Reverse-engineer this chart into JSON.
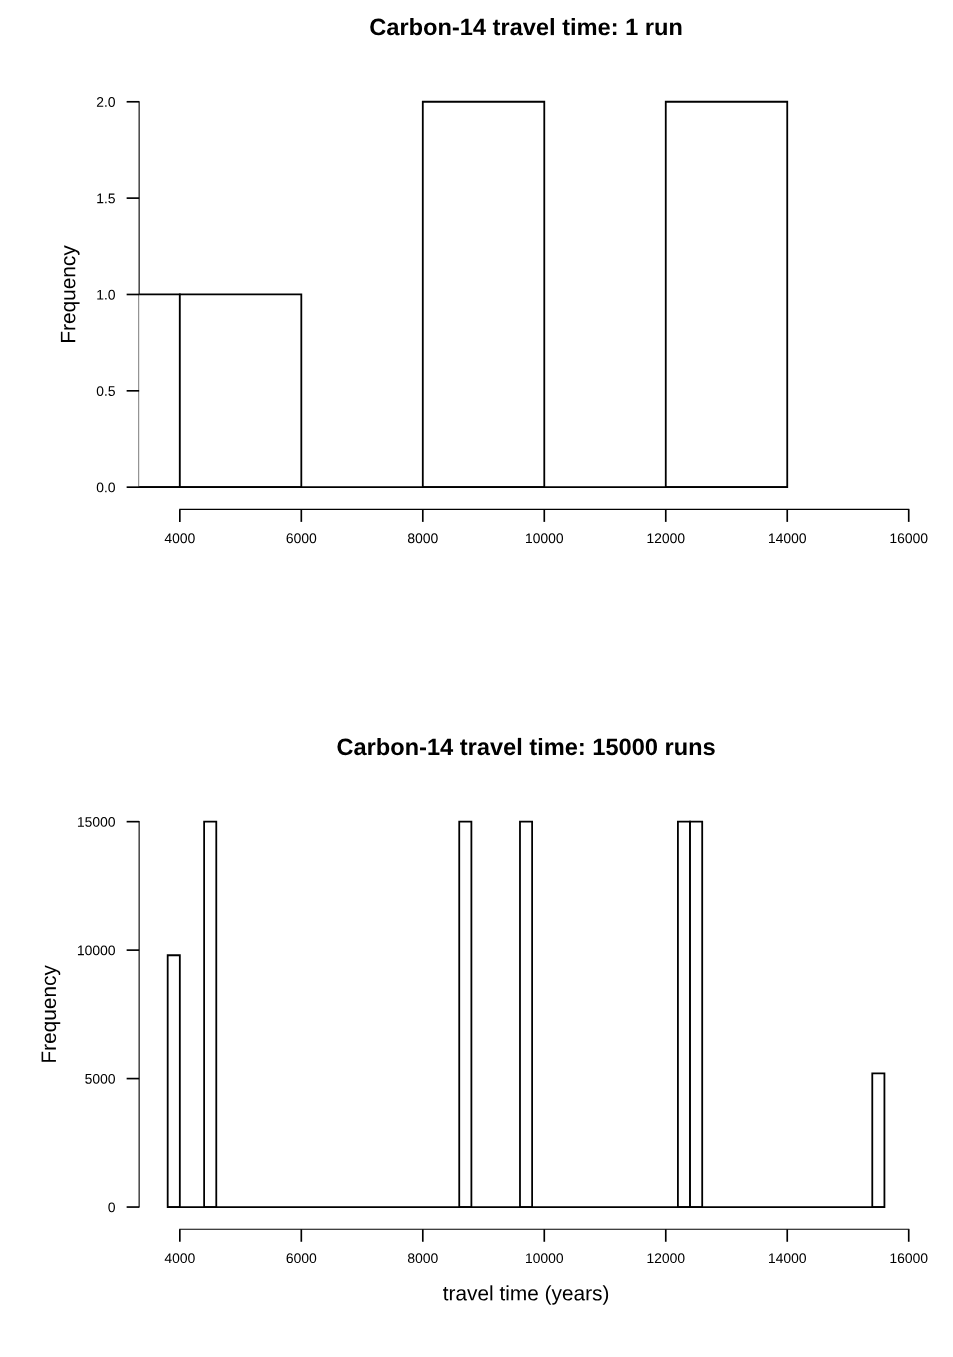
{
  "chart_data": [
    {
      "type": "histogram",
      "title": "Carbon-14 travel time: 1 run",
      "ylabel": "Frequency",
      "bins": [
        2000,
        4000,
        6000,
        8000,
        10000,
        12000,
        14000
      ],
      "values": [
        1,
        1,
        0,
        2,
        0,
        2
      ],
      "color": "#ffffff",
      "xlim": [
        3330,
        16070
      ],
      "xticks": [
        4000,
        6000,
        8000,
        10000,
        12000,
        14000,
        16000
      ],
      "ylim": [
        0,
        2
      ],
      "yticks": [
        {
          "value": 0,
          "label": "0.0"
        },
        {
          "value": 0.5,
          "label": "0.5"
        },
        {
          "value": 1,
          "label": "1.0"
        },
        {
          "value": 1.5,
          "label": "1.5"
        },
        {
          "value": 2,
          "label": "2.0"
        }
      ],
      "grid": false,
      "legend": false
    },
    {
      "type": "histogram",
      "title": "Carbon-14 travel time: 15000 runs",
      "xlabel": "travel time (years)",
      "ylabel": "Frequency",
      "bins": [
        3800,
        4000,
        4200,
        4400,
        4600,
        4800,
        5000,
        5200,
        5400,
        5600,
        5800,
        6000,
        6200,
        6400,
        6600,
        6800,
        7000,
        7200,
        7400,
        7600,
        7800,
        8000,
        8200,
        8400,
        8600,
        8800,
        9000,
        9200,
        9400,
        9600,
        9800,
        10000,
        10200,
        10400,
        10600,
        10800,
        11000,
        11200,
        11400,
        11600,
        11800,
        12000,
        12200,
        12400,
        12600,
        12800,
        13000,
        13200,
        13400,
        13600,
        13800,
        14000,
        14200,
        14400,
        14600,
        14800,
        15000,
        15200,
        15400,
        15600
      ],
      "values": [
        9800,
        0,
        0,
        15000,
        0,
        0,
        0,
        0,
        0,
        0,
        0,
        0,
        0,
        0,
        0,
        0,
        0,
        0,
        0,
        0,
        0,
        0,
        0,
        0,
        15000,
        0,
        0,
        0,
        0,
        15000,
        0,
        0,
        0,
        0,
        0,
        0,
        0,
        0,
        0,
        0,
        0,
        0,
        15000,
        15000,
        0,
        0,
        0,
        0,
        0,
        0,
        0,
        0,
        0,
        0,
        0,
        0,
        0,
        0,
        5200
      ],
      "color": "#ffffff",
      "xlim": [
        3330,
        16070
      ],
      "xticks": [
        4000,
        6000,
        8000,
        10000,
        12000,
        14000,
        16000
      ],
      "ylim": [
        0,
        15000
      ],
      "yticks": [
        0,
        5000,
        10000,
        15000
      ],
      "grid": false,
      "legend": false
    }
  ]
}
